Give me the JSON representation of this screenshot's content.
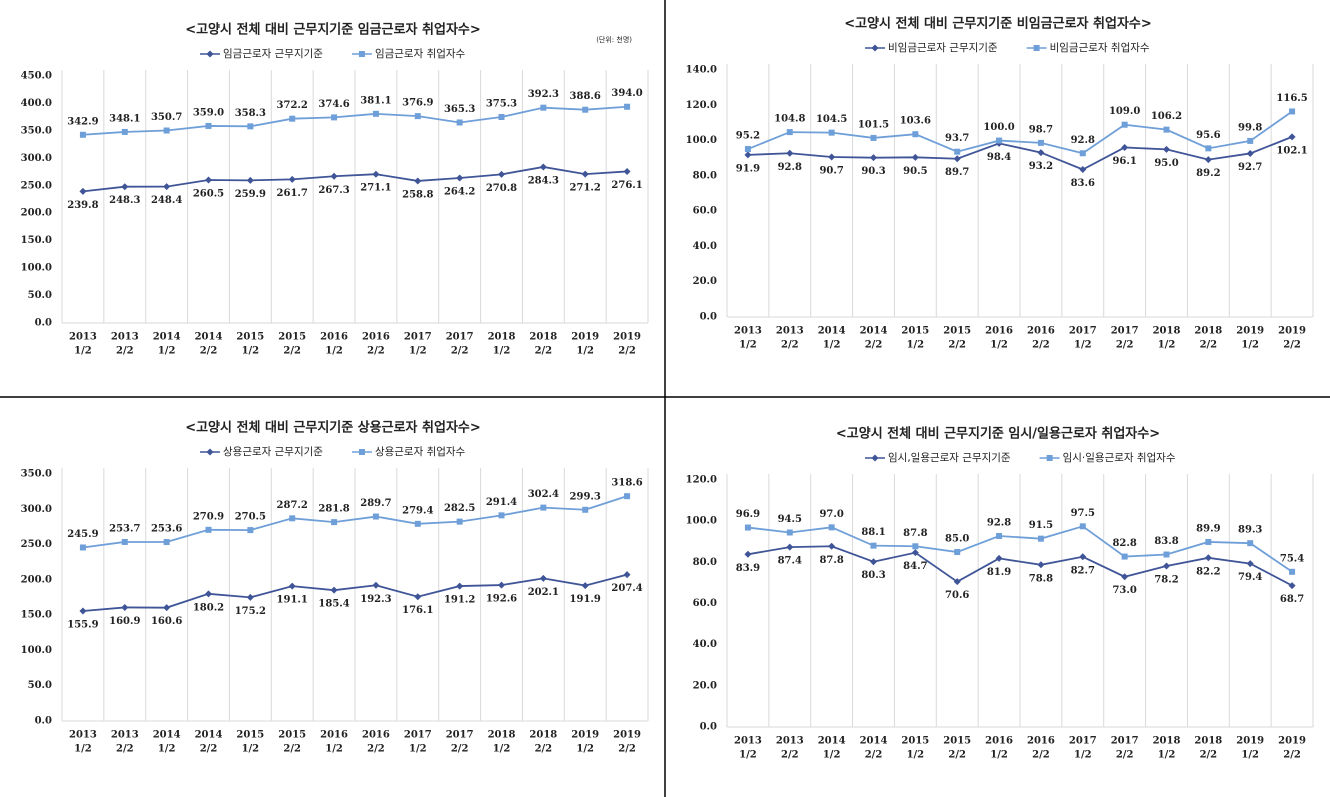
{
  "chart_data": [
    {
      "type": "line",
      "title": "<고양시 전체 대비 근무지기준 임금근로자 취업자수>",
      "note": "(단위: 천명)",
      "categories": [
        [
          "2013",
          "1/2"
        ],
        [
          "2013",
          "2/2"
        ],
        [
          "2014",
          "1/2"
        ],
        [
          "2014",
          "2/2"
        ],
        [
          "2015",
          "1/2"
        ],
        [
          "2015",
          "2/2"
        ],
        [
          "2016",
          "1/2"
        ],
        [
          "2016",
          "2/2"
        ],
        [
          "2017",
          "1/2"
        ],
        [
          "2017",
          "2/2"
        ],
        [
          "2018",
          "1/2"
        ],
        [
          "2018",
          "2/2"
        ],
        [
          "2019",
          "1/2"
        ],
        [
          "2019",
          "2/2"
        ]
      ],
      "series": [
        {
          "name": "임금근로자 근무지기준",
          "color": "#3f5597",
          "marker": "diamond",
          "values": [
            239.8,
            248.3,
            248.4,
            260.5,
            259.9,
            261.7,
            267.3,
            271.1,
            258.8,
            264.2,
            270.8,
            284.3,
            271.2,
            276.1
          ],
          "value_labels": [
            "239.8",
            "248.3",
            "248.4",
            "260.5",
            "259.9",
            "261.7",
            "267.3",
            "271.1",
            "258.8",
            "264.2",
            "270.8",
            "284.3",
            "271.2",
            "276.1"
          ]
        },
        {
          "name": "임금근로자 취업자수",
          "color": "#6f9fd8",
          "marker": "square",
          "values": [
            342.9,
            348.1,
            350.7,
            359.0,
            358.3,
            372.2,
            374.6,
            381.1,
            376.9,
            365.3,
            375.3,
            392.3,
            388.6,
            394.0
          ],
          "value_labels": [
            "342.9",
            "348.1",
            "350.7",
            "359.0",
            "358.3",
            "372.2",
            "374.6",
            "381.1",
            "376.9",
            "365.3",
            "375.3",
            "392.3",
            "388.6",
            "394.0"
          ]
        }
      ],
      "ylim": [
        0,
        450
      ],
      "yticks": [
        {
          "value": 0,
          "label": "0.0"
        },
        {
          "value": 50,
          "label": "50.0"
        },
        {
          "value": 100,
          "label": "100.0"
        },
        {
          "value": 150,
          "label": "150.0"
        },
        {
          "value": 200,
          "label": "200.0"
        },
        {
          "value": 250,
          "label": "250.0"
        },
        {
          "value": 300,
          "label": "300.0"
        },
        {
          "value": 350,
          "label": "350.0"
        },
        {
          "value": 400,
          "label": "400.0"
        },
        {
          "value": 450,
          "label": "450.0"
        }
      ]
    },
    {
      "type": "line",
      "title": "<고양시 전체 대비 근무지기준 비임금근로자 취업자수>",
      "categories": [
        [
          "2013",
          "1/2"
        ],
        [
          "2013",
          "2/2"
        ],
        [
          "2014",
          "1/2"
        ],
        [
          "2014",
          "2/2"
        ],
        [
          "2015",
          "1/2"
        ],
        [
          "2015",
          "2/2"
        ],
        [
          "2016",
          "1/2"
        ],
        [
          "2016",
          "2/2"
        ],
        [
          "2017",
          "1/2"
        ],
        [
          "2017",
          "2/2"
        ],
        [
          "2018",
          "1/2"
        ],
        [
          "2018",
          "2/2"
        ],
        [
          "2019",
          "1/2"
        ],
        [
          "2019",
          "2/2"
        ]
      ],
      "series": [
        {
          "name": "비임금근로자 근무지기준",
          "color": "#3f5597",
          "marker": "diamond",
          "values": [
            91.9,
            92.8,
            90.7,
            90.3,
            90.5,
            89.7,
            98.4,
            93.2,
            83.6,
            96.1,
            95.0,
            89.2,
            92.7,
            102.1
          ],
          "value_labels": [
            "91.9",
            "92.8",
            "90.7",
            "90.3",
            "90.5",
            "89.7",
            "98.4",
            "93.2",
            "83.6",
            "96.1",
            "95.0",
            "89.2",
            "92.7",
            "102.1"
          ]
        },
        {
          "name": "비임금근로자 취업자수",
          "color": "#6f9fd8",
          "marker": "square",
          "values": [
            95.2,
            104.8,
            104.5,
            101.5,
            103.6,
            93.7,
            100.0,
            98.7,
            92.8,
            109.0,
            106.2,
            95.6,
            99.8,
            116.5
          ],
          "value_labels": [
            "95.2",
            "104.8",
            "104.5",
            "101.5",
            "103.6",
            "93.7",
            "100.0",
            "98.7",
            "92.8",
            "109.0",
            "106.2",
            "95.6",
            "99.8",
            "116.5"
          ]
        }
      ],
      "ylim": [
        0,
        140
      ],
      "yticks": [
        {
          "value": 0,
          "label": "0.0"
        },
        {
          "value": 20,
          "label": "20.0"
        },
        {
          "value": 40,
          "label": "40.0"
        },
        {
          "value": 60,
          "label": "60.0"
        },
        {
          "value": 80,
          "label": "80.0"
        },
        {
          "value": 100,
          "label": "100.0"
        },
        {
          "value": 120,
          "label": "120.0"
        },
        {
          "value": 140,
          "label": "140.0"
        }
      ]
    },
    {
      "type": "line",
      "title": "<고양시 전체 대비 근무지기준 상용근로자 취업자수>",
      "categories": [
        [
          "2013",
          "1/2"
        ],
        [
          "2013",
          "2/2"
        ],
        [
          "2014",
          "1/2"
        ],
        [
          "2014",
          "2/2"
        ],
        [
          "2015",
          "1/2"
        ],
        [
          "2015",
          "2/2"
        ],
        [
          "2016",
          "1/2"
        ],
        [
          "2016",
          "2/2"
        ],
        [
          "2017",
          "1/2"
        ],
        [
          "2017",
          "2/2"
        ],
        [
          "2018",
          "1/2"
        ],
        [
          "2018",
          "2/2"
        ],
        [
          "2019",
          "1/2"
        ],
        [
          "2019",
          "2/2"
        ]
      ],
      "series": [
        {
          "name": "상용근로자 근무지기준",
          "color": "#3f5597",
          "marker": "diamond",
          "values": [
            155.9,
            160.9,
            160.6,
            180.2,
            175.2,
            191.1,
            185.4,
            192.3,
            176.1,
            191.2,
            192.6,
            202.1,
            191.9,
            207.4
          ],
          "value_labels": [
            "155.9",
            "160.9",
            "160.6",
            "180.2",
            "175.2",
            "191.1",
            "185.4",
            "192.3",
            "176.1",
            "191.2",
            "192.6",
            "202.1",
            "191.9",
            "207.4"
          ]
        },
        {
          "name": "상용근로자 취업자수",
          "color": "#6f9fd8",
          "marker": "square",
          "values": [
            245.9,
            253.7,
            253.6,
            270.9,
            270.5,
            287.2,
            281.8,
            289.7,
            279.4,
            282.5,
            291.4,
            302.4,
            299.3,
            318.6
          ],
          "value_labels": [
            "245.9",
            "253.7",
            "253.6",
            "270.9",
            "270.5",
            "287.2",
            "281.8",
            "289.7",
            "279.4",
            "282.5",
            "291.4",
            "302.4",
            "299.3",
            "318.6"
          ]
        }
      ],
      "ylim": [
        0,
        350
      ],
      "yticks": [
        {
          "value": 0,
          "label": "0.0"
        },
        {
          "value": 50,
          "label": "50.0"
        },
        {
          "value": 100,
          "label": "100.0"
        },
        {
          "value": 150,
          "label": "150.0"
        },
        {
          "value": 200,
          "label": "200.0"
        },
        {
          "value": 250,
          "label": "250.0"
        },
        {
          "value": 300,
          "label": "300.0"
        },
        {
          "value": 350,
          "label": "350.0"
        }
      ]
    },
    {
      "type": "line",
      "title": "<고양시 전체 대비 근무지기준 임시/일용근로자 취업자수>",
      "categories": [
        [
          "2013",
          "1/2"
        ],
        [
          "2013",
          "2/2"
        ],
        [
          "2014",
          "1/2"
        ],
        [
          "2014",
          "2/2"
        ],
        [
          "2015",
          "1/2"
        ],
        [
          "2015",
          "2/2"
        ],
        [
          "2016",
          "1/2"
        ],
        [
          "2016",
          "2/2"
        ],
        [
          "2017",
          "1/2"
        ],
        [
          "2017",
          "2/2"
        ],
        [
          "2018",
          "1/2"
        ],
        [
          "2018",
          "2/2"
        ],
        [
          "2019",
          "1/2"
        ],
        [
          "2019",
          "2/2"
        ]
      ],
      "series": [
        {
          "name": "임시,일용근로자 근무지기준",
          "color": "#3f5597",
          "marker": "diamond",
          "values": [
            83.9,
            87.4,
            87.8,
            80.3,
            84.7,
            70.6,
            81.9,
            78.8,
            82.7,
            73.0,
            78.2,
            82.2,
            79.4,
            68.7
          ],
          "value_labels": [
            "83.9",
            "87.4",
            "87.8",
            "80.3",
            "84.7",
            "70.6",
            "81.9",
            "78.8",
            "82.7",
            "73.0",
            "78.2",
            "82.2",
            "79.4",
            "68.7"
          ]
        },
        {
          "name": "임시·일용근로자 취업자수",
          "color": "#6f9fd8",
          "marker": "square",
          "values": [
            96.9,
            94.5,
            97.0,
            88.1,
            87.8,
            85.0,
            92.8,
            91.5,
            97.5,
            82.8,
            83.8,
            89.9,
            89.3,
            75.4
          ],
          "value_labels": [
            "96.9",
            "94.5",
            "97.0",
            "88.1",
            "87.8",
            "85.0",
            "92.8",
            "91.5",
            "97.5",
            "82.8",
            "83.8",
            "89.9",
            "89.3",
            "75.4"
          ]
        }
      ],
      "ylim": [
        0,
        120
      ],
      "yticks": [
        {
          "value": 0,
          "label": "0.0"
        },
        {
          "value": 20,
          "label": "20.0"
        },
        {
          "value": 40,
          "label": "40.0"
        },
        {
          "value": 60,
          "label": "60.0"
        },
        {
          "value": 80,
          "label": "80.0"
        },
        {
          "value": 100,
          "label": "100.0"
        },
        {
          "value": 120,
          "label": "120.0"
        }
      ]
    }
  ]
}
